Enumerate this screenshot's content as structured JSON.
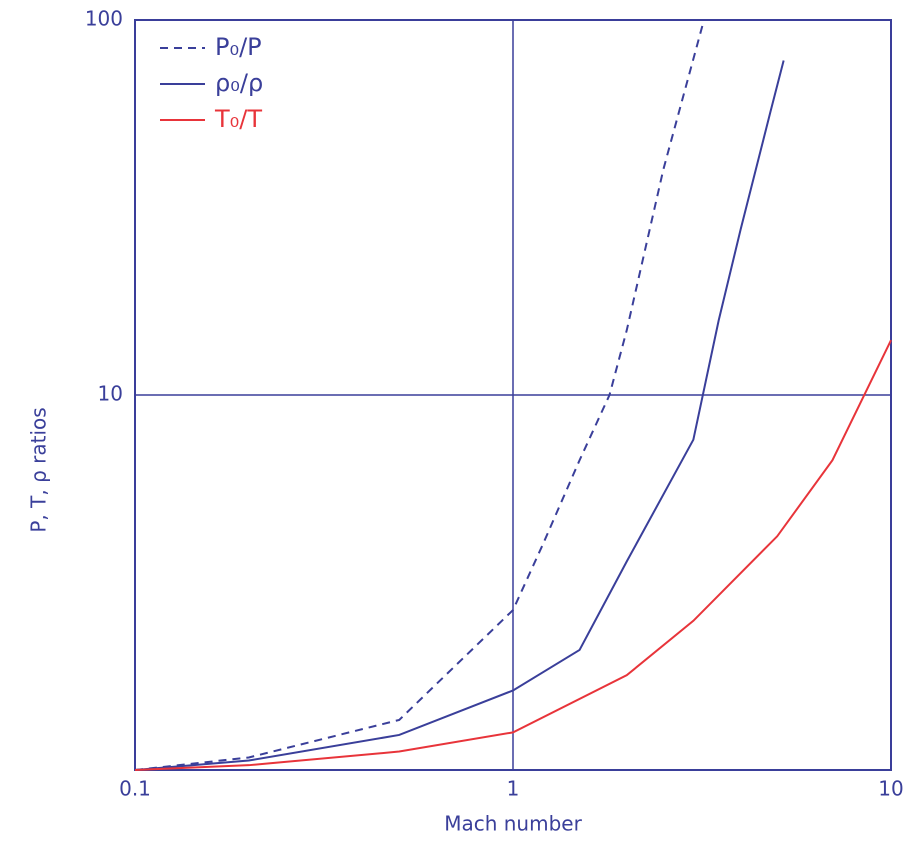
{
  "chart_data": {
    "type": "line",
    "x_label": "Mach number",
    "y_label": "P, T, ρ ratios",
    "xscale": "log",
    "yscale": "log",
    "xlim": [
      0.1,
      10
    ],
    "ylim": [
      1,
      100
    ],
    "xticks": [
      0.1,
      1,
      10
    ],
    "yticks": [
      10,
      100
    ],
    "grid": true,
    "legend": "top-left",
    "series": [
      {
        "name": "P₀/P",
        "color": "#3a3f9a",
        "dashed": true,
        "x": [
          0.1,
          0.2,
          0.5,
          1,
          1.2,
          1.5,
          1.8,
          2,
          2.5,
          3.2
        ],
        "values": [
          1,
          1.08,
          1.36,
          2.67,
          4,
          6.7,
          10,
          14.9,
          40,
          100
        ]
      },
      {
        "name": "ρ₀/ρ",
        "color": "#3a3f9a",
        "dashed": false,
        "x": [
          0.1,
          0.2,
          0.5,
          1,
          1.5,
          2,
          3,
          3.5,
          4,
          4.8,
          5.2
        ],
        "values": [
          1,
          1.06,
          1.24,
          1.63,
          2.09,
          3.6,
          7.6,
          15.8,
          27.6,
          57,
          78
        ]
      },
      {
        "name": "T₀/T",
        "color": "#e8343a",
        "dashed": false,
        "x": [
          0.1,
          0.2,
          0.5,
          1,
          2,
          3,
          5,
          7,
          10
        ],
        "values": [
          1,
          1.03,
          1.12,
          1.26,
          1.79,
          2.5,
          4.2,
          6.7,
          14
        ]
      }
    ]
  }
}
